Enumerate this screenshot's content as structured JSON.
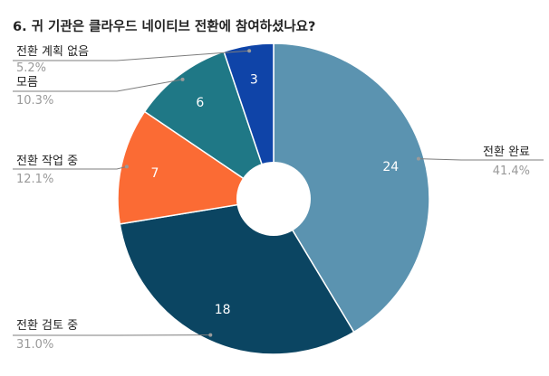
{
  "chart_data": {
    "type": "pie",
    "donut": true,
    "title": "6. 귀 기관은 클라우드 네이티브 전환에 참여하셨나요?",
    "slices": [
      {
        "label": "전환 완료",
        "value": 24,
        "percent": "41.4%",
        "color": "#5b93b0"
      },
      {
        "label": "전환 검토 중",
        "value": 18,
        "percent": "31.0%",
        "color": "#0b4562"
      },
      {
        "label": "전환 작업 중",
        "value": 7,
        "percent": "12.1%",
        "color": "#fb6b34"
      },
      {
        "label": "모름",
        "value": 6,
        "percent": "10.3%",
        "color": "#1f7886"
      },
      {
        "label": "전환 계획 없음",
        "value": 3,
        "percent": "5.2%",
        "color": "#0f44a8"
      }
    ],
    "legend": "none"
  }
}
